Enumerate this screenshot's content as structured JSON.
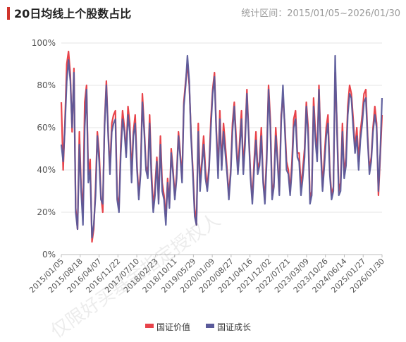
{
  "header": {
    "title": "20日均线上个股数占比",
    "subtitle": "统计区间：2015/01/05~2026/01/30"
  },
  "colors": {
    "value": "#e8434a",
    "growth": "#5a5a9a",
    "grid": "#e6e6e6",
    "axis": "#bdbdbd"
  },
  "chart_data": {
    "type": "line",
    "title": "20日均线上个股数占比",
    "xlabel": "",
    "ylabel": "",
    "ylim": [
      0,
      100
    ],
    "y_ticks": [
      "0%",
      "20%",
      "40%",
      "60%",
      "80%",
      "100%"
    ],
    "x_ticks": [
      "2015/01/05",
      "2015/08/18",
      "2016/04/07",
      "2016/11/22",
      "2017/07/10",
      "2018/02/23",
      "2018/10/11",
      "2019/05/29",
      "2020/01/09",
      "2020/08/27",
      "2021/04/16",
      "2021/12/02",
      "2022/07/21",
      "2023/03/09",
      "2023/10/26",
      "2024/06/14",
      "2025/01/27",
      "2026/01/30"
    ],
    "grid": true,
    "legend_position": "bottom",
    "series": [
      {
        "name": "国证价值",
        "color": "#e8434a",
        "values": [
          72,
          40,
          62,
          90,
          96,
          85,
          58,
          88,
          22,
          12,
          58,
          32,
          20,
          72,
          80,
          38,
          45,
          6,
          12,
          32,
          58,
          48,
          28,
          20,
          62,
          82,
          58,
          40,
          62,
          66,
          68,
          28,
          22,
          52,
          68,
          60,
          48,
          70,
          62,
          38,
          58,
          66,
          42,
          28,
          40,
          76,
          60,
          42,
          38,
          66,
          40,
          22,
          32,
          46,
          26,
          56,
          34,
          28,
          18,
          36,
          24,
          50,
          40,
          28,
          38,
          58,
          48,
          36,
          72,
          82,
          90,
          80,
          58,
          40,
          22,
          14,
          62,
          34,
          44,
          56,
          40,
          32,
          42,
          64,
          78,
          86,
          60,
          40,
          68,
          42,
          62,
          52,
          40,
          28,
          40,
          62,
          72,
          56,
          40,
          54,
          68,
          40,
          56,
          78,
          58,
          38,
          26,
          44,
          58,
          40,
          44,
          60,
          36,
          26,
          48,
          80,
          64,
          28,
          34,
          60,
          46,
          30,
          66,
          74,
          62,
          44,
          40,
          30,
          44,
          64,
          68,
          48,
          48,
          32,
          40,
          50,
          72,
          60,
          26,
          30,
          74,
          58,
          48,
          80,
          52,
          32,
          46,
          60,
          66,
          40,
          28,
          32,
          86,
          62,
          30,
          34,
          62,
          38,
          46,
          70,
          80,
          76,
          64,
          50,
          60,
          44,
          58,
          66,
          76,
          78,
          56,
          40,
          46,
          60,
          70,
          62,
          28,
          46,
          66
        ]
      },
      {
        "name": "国证成长",
        "color": "#5a5a9a",
        "values": [
          52,
          44,
          60,
          82,
          92,
          82,
          60,
          86,
          20,
          12,
          52,
          30,
          14,
          60,
          78,
          34,
          40,
          8,
          14,
          28,
          56,
          44,
          26,
          24,
          60,
          80,
          56,
          38,
          58,
          62,
          64,
          26,
          20,
          48,
          64,
          58,
          46,
          66,
          58,
          34,
          56,
          62,
          40,
          26,
          38,
          72,
          58,
          40,
          36,
          62,
          36,
          20,
          28,
          44,
          24,
          52,
          30,
          26,
          14,
          34,
          22,
          48,
          38,
          26,
          36,
          56,
          46,
          34,
          70,
          80,
          94,
          82,
          56,
          38,
          18,
          14,
          58,
          30,
          42,
          52,
          36,
          30,
          40,
          60,
          76,
          84,
          58,
          36,
          64,
          40,
          58,
          48,
          38,
          26,
          38,
          58,
          70,
          52,
          38,
          50,
          64,
          38,
          52,
          76,
          56,
          36,
          24,
          40,
          54,
          38,
          42,
          56,
          34,
          24,
          44,
          78,
          60,
          26,
          32,
          56,
          44,
          28,
          62,
          80,
          60,
          40,
          38,
          28,
          40,
          60,
          64,
          46,
          44,
          28,
          36,
          46,
          70,
          56,
          24,
          28,
          70,
          54,
          44,
          78,
          48,
          30,
          42,
          56,
          62,
          38,
          26,
          30,
          94,
          58,
          28,
          30,
          58,
          36,
          42,
          66,
          76,
          74,
          60,
          48,
          56,
          40,
          54,
          62,
          72,
          74,
          54,
          38,
          44,
          58,
          66,
          60,
          30,
          48,
          74
        ]
      }
    ]
  },
  "legend": {
    "items": [
      "国证价值",
      "国证成长"
    ]
  },
  "watermark": "仅限好买基金指定授权人"
}
